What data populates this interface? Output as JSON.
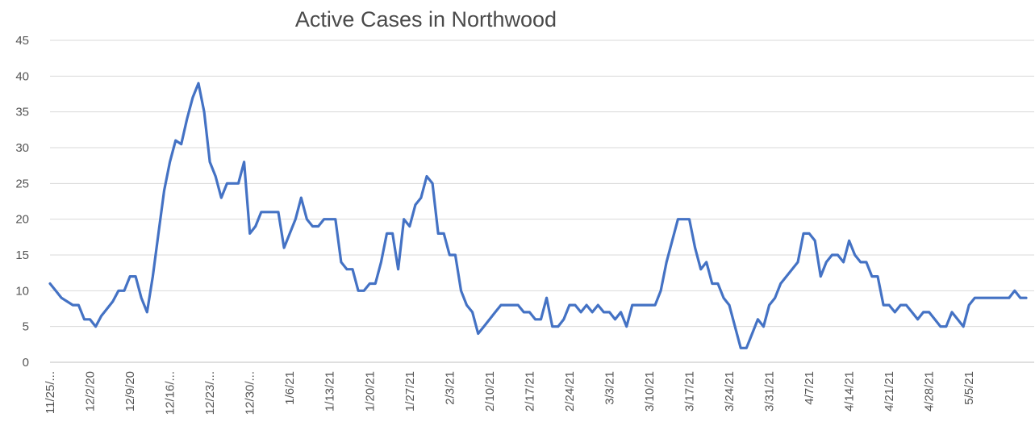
{
  "chart_data": {
    "type": "line",
    "title": "Active Cases in Northwood",
    "xlabel": "",
    "ylabel": "",
    "ylim": [
      0,
      45
    ],
    "yticks": [
      0,
      5,
      10,
      15,
      20,
      25,
      30,
      35,
      40,
      45
    ],
    "grid": true,
    "legend": "none",
    "x_tick_labels": [
      "11/25/...",
      "12/2/20",
      "12/9/20",
      "12/16/...",
      "12/23/...",
      "12/30/...",
      "1/6/21",
      "1/13/21",
      "1/20/21",
      "1/27/21",
      "2/3/21",
      "2/10/21",
      "2/17/21",
      "2/24/21",
      "3/3/21",
      "3/10/21",
      "3/17/21",
      "3/24/21",
      "3/31/21",
      "4/7/21",
      "4/14/21",
      "4/21/21",
      "4/28/21",
      "5/5/21"
    ],
    "series": [
      {
        "color": "#4472c4",
        "values": [
          11,
          10,
          9,
          8.5,
          8,
          8,
          6,
          6,
          5,
          6.5,
          7.5,
          8.5,
          10,
          10,
          12,
          12,
          9,
          7,
          12,
          18,
          24,
          28,
          31,
          30.5,
          34,
          37,
          39,
          35,
          28,
          26,
          23,
          25,
          25,
          25,
          28,
          18,
          19,
          21,
          21,
          21,
          21,
          16,
          18,
          20,
          23,
          20,
          19,
          19,
          20,
          20,
          20,
          14,
          13,
          13,
          10,
          10,
          11,
          11,
          14,
          18,
          18,
          13,
          20,
          19,
          22,
          23,
          26,
          25,
          18,
          18,
          15,
          15,
          10,
          8,
          7,
          4,
          5,
          6,
          7,
          8,
          8,
          8,
          8,
          7,
          7,
          6,
          6,
          9,
          5,
          5,
          6,
          8,
          8,
          7,
          8,
          7,
          8,
          7,
          7,
          6,
          7,
          5,
          8,
          8,
          8,
          8,
          8,
          10,
          14,
          17,
          20,
          20,
          20,
          16,
          13,
          14,
          11,
          11,
          9,
          8,
          5,
          2,
          2,
          4,
          6,
          5,
          8,
          9,
          11,
          12,
          13,
          14,
          18,
          18,
          17,
          12,
          14,
          15,
          15,
          14,
          17,
          15,
          14,
          14,
          12,
          12,
          8,
          8,
          7,
          8,
          8,
          7,
          6,
          7,
          7,
          6,
          5,
          5,
          7,
          6,
          5,
          8,
          9,
          9,
          9,
          9,
          9,
          9,
          9,
          10,
          9,
          9
        ]
      }
    ]
  }
}
